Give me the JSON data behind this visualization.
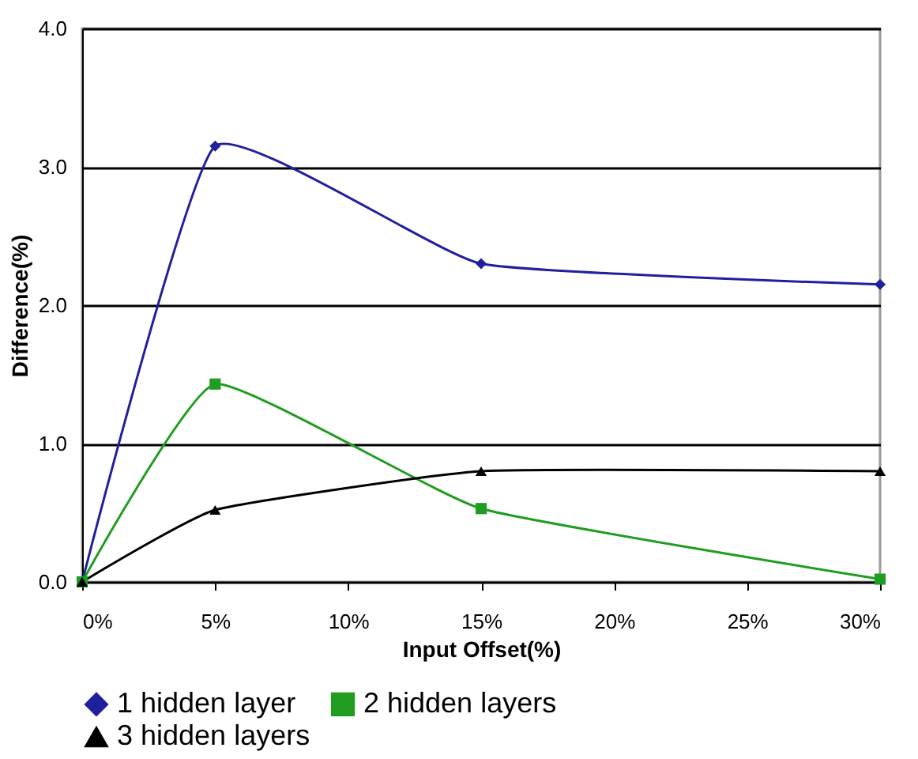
{
  "chart_data": {
    "type": "line",
    "xlabel": "Input Offset(%)",
    "ylabel": "Difference(%)",
    "x": [
      0,
      5,
      15,
      30
    ],
    "series": [
      {
        "name": "1 hidden layer",
        "color": "#20209c",
        "marker": "diamond",
        "values": [
          0,
          3.15,
          2.3,
          2.15
        ]
      },
      {
        "name": "2 hidden layers",
        "color": "#209c20",
        "marker": "square",
        "values": [
          0,
          1.43,
          0.53,
          0.02
        ]
      },
      {
        "name": "3 hidden layers",
        "color": "#000000",
        "marker": "triangle",
        "values": [
          0,
          0.52,
          0.8,
          0.8
        ]
      }
    ],
    "xlim": [
      0,
      30
    ],
    "xticks": [
      {
        "value": 0,
        "label": "0%"
      },
      {
        "value": 5,
        "label": "5%"
      },
      {
        "value": 10,
        "label": "10%"
      },
      {
        "value": 15,
        "label": "15%"
      },
      {
        "value": 20,
        "label": "20%"
      },
      {
        "value": 25,
        "label": "25%"
      },
      {
        "value": 30,
        "label": "30%"
      }
    ],
    "ylim": [
      0,
      4
    ],
    "yticks": [
      {
        "value": 0,
        "label": "0.0"
      },
      {
        "value": 1,
        "label": "1.0"
      },
      {
        "value": 2,
        "label": "2.0"
      },
      {
        "value": 3,
        "label": "3.0"
      },
      {
        "value": 4,
        "label": "4.0"
      }
    ],
    "grid": "y",
    "legend": "bottom"
  }
}
